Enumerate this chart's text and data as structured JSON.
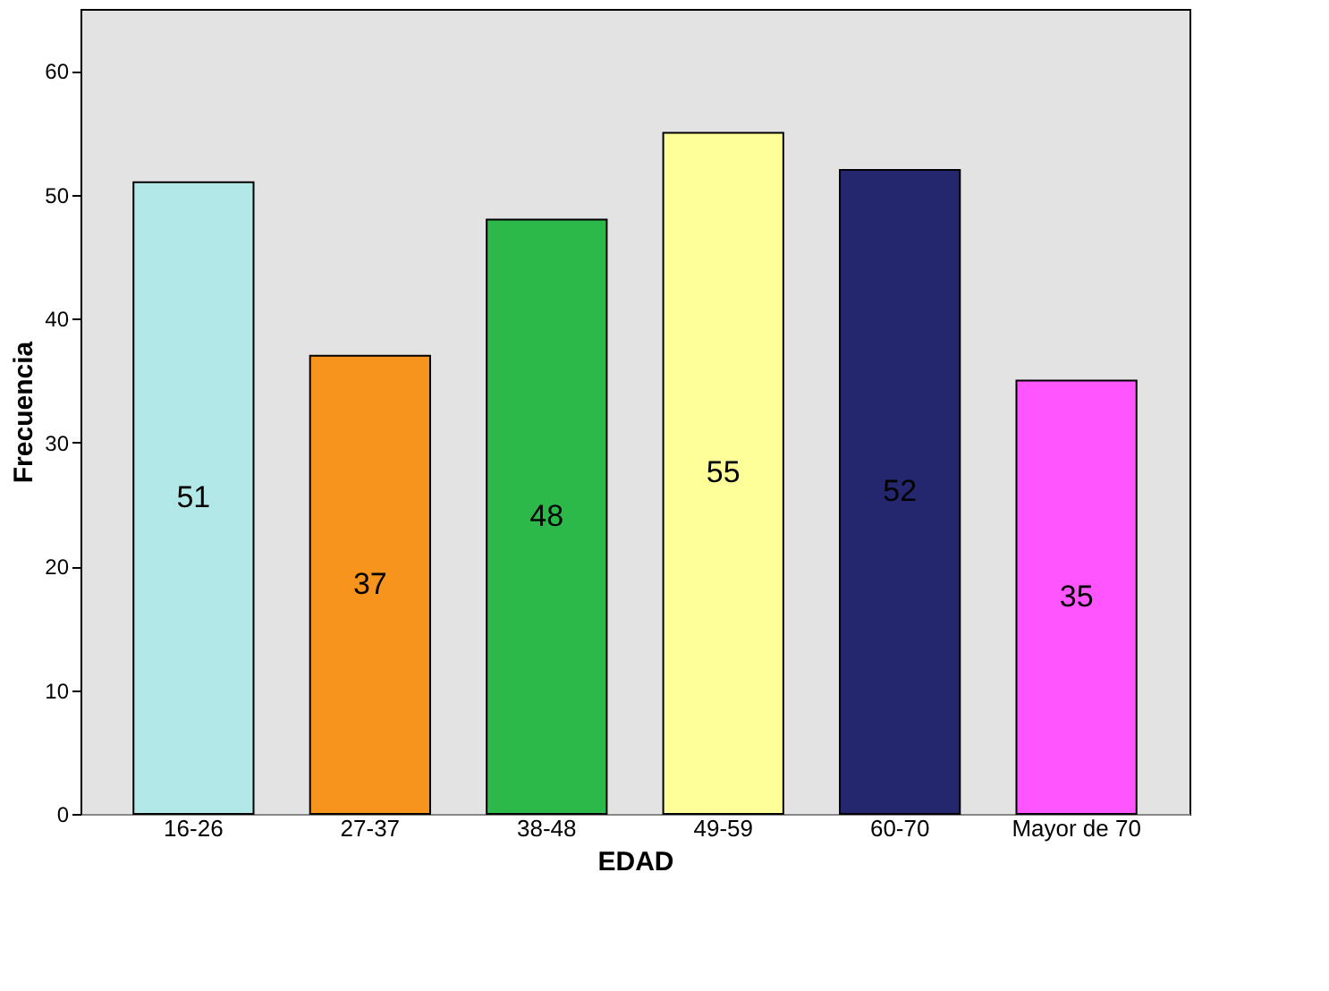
{
  "chart_data": {
    "type": "bar",
    "xlabel": "EDAD",
    "ylabel": "Frecuencia",
    "categories": [
      "16-26",
      "27-37",
      "38-48",
      "49-59",
      "60-70",
      "Mayor de 70"
    ],
    "values": [
      51,
      37,
      48,
      55,
      52,
      35
    ],
    "colors": [
      "#b3e8e8",
      "#f7941d",
      "#2db84a",
      "#ffff99",
      "#24276e",
      "#ff55ff"
    ],
    "ylim": [
      0,
      65
    ],
    "yticks": [
      0,
      10,
      20,
      30,
      40,
      50,
      60
    ],
    "data_labels": true,
    "grid": false
  }
}
